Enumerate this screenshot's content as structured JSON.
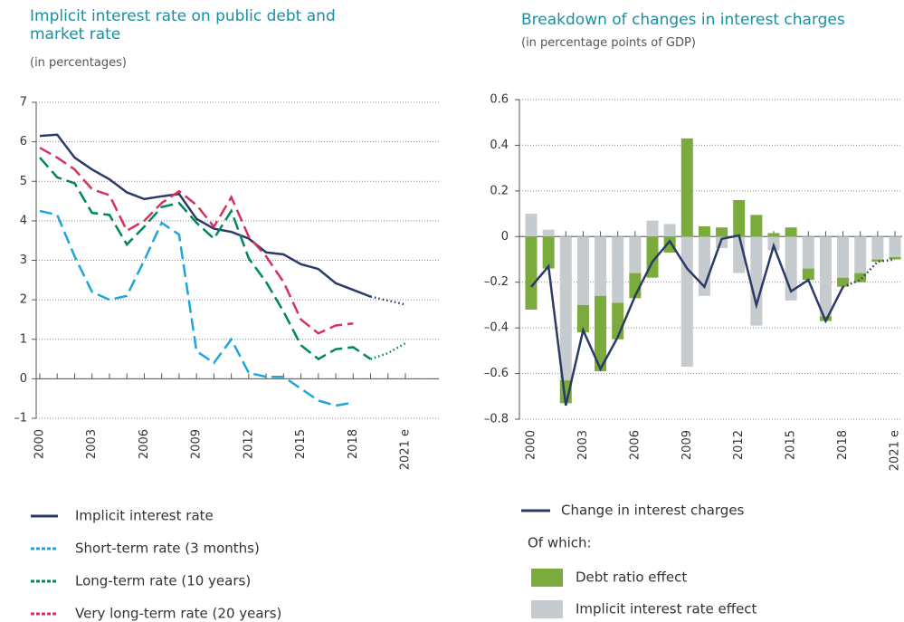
{
  "chart_data": [
    {
      "type": "line",
      "title": "Implicit interest rate on public debt and market rate",
      "subtitle": "(in percentages)",
      "x": [
        2000,
        2001,
        2002,
        2003,
        2004,
        2005,
        2006,
        2007,
        2008,
        2009,
        2010,
        2011,
        2012,
        2013,
        2014,
        2015,
        2016,
        2017,
        2018,
        2019,
        2020,
        2021
      ],
      "xlim": [
        2000,
        2021
      ],
      "xticks": [
        2000,
        2003,
        2006,
        2009,
        2012,
        2015,
        2018,
        {
          "value": 2021,
          "label": "2021 e"
        }
      ],
      "ylim": [
        -1,
        7
      ],
      "yticks": [
        {
          "value": -1,
          "label": "–1"
        },
        0,
        1,
        2,
        3,
        4,
        5,
        6,
        7
      ],
      "grid": true,
      "forecast_from": 2019,
      "series": [
        {
          "name": "Implicit interest rate",
          "color": "#2b3a67",
          "line_style": "solid",
          "values": [
            6.15,
            6.18,
            5.6,
            5.3,
            5.05,
            4.72,
            4.55,
            4.62,
            4.68,
            4.05,
            3.8,
            3.72,
            3.55,
            3.2,
            3.15,
            2.9,
            2.78,
            2.42,
            2.25,
            2.08,
            1.98,
            1.88
          ]
        },
        {
          "name": "Short-term rate (3 months)",
          "color": "#1ea5dc",
          "line_style": "dashed",
          "values": [
            4.25,
            4.15,
            3.1,
            2.2,
            2.0,
            2.1,
            3.0,
            3.95,
            3.65,
            0.7,
            0.4,
            1.0,
            0.15,
            0.05,
            0.05,
            -0.25,
            -0.55,
            -0.68,
            -0.6,
            null,
            null,
            null
          ]
        },
        {
          "name": "Long-term rate (10 years)",
          "color": "#00875a",
          "line_style": "dashed",
          "values": [
            5.6,
            5.1,
            4.95,
            4.2,
            4.15,
            3.4,
            3.85,
            4.35,
            4.45,
            3.95,
            3.55,
            4.25,
            3.05,
            2.45,
            1.7,
            0.85,
            0.5,
            0.75,
            0.8,
            0.5,
            0.65,
            0.9
          ]
        },
        {
          "name": "Very long-term rate (20 years)",
          "color": "#d6335a",
          "line_style": "dashed",
          "values": [
            5.85,
            5.6,
            5.3,
            4.8,
            4.65,
            3.75,
            4.0,
            4.45,
            4.75,
            4.4,
            3.85,
            4.6,
            3.6,
            3.1,
            2.45,
            1.5,
            1.15,
            1.35,
            1.4,
            null,
            null,
            null
          ]
        }
      ]
    },
    {
      "type": "bar_line",
      "title": "Breakdown of changes in interest charges",
      "subtitle": "(in percentage points of GDP)",
      "x": [
        2000,
        2001,
        2002,
        2003,
        2004,
        2005,
        2006,
        2007,
        2008,
        2009,
        2010,
        2011,
        2012,
        2013,
        2014,
        2015,
        2016,
        2017,
        2018,
        2019,
        2020,
        2021
      ],
      "xlim": [
        2000,
        2021
      ],
      "xticks": [
        2000,
        2003,
        2006,
        2009,
        2012,
        2015,
        2018,
        {
          "value": 2021,
          "label": "2021 e"
        }
      ],
      "ylim": [
        -0.8,
        0.6
      ],
      "yticks": [
        {
          "value": -0.8,
          "label": "–0.8"
        },
        {
          "value": -0.6,
          "label": "–0.6"
        },
        {
          "value": -0.4,
          "label": "–0.4"
        },
        {
          "value": -0.2,
          "label": "–0.2"
        },
        0,
        0.2,
        0.4,
        0.6
      ],
      "grid": true,
      "forecast_from": 2018,
      "legend_note": "Of which:",
      "series": [
        {
          "name": "Change in interest charges",
          "type": "line",
          "color": "#2b3a67",
          "values": [
            -0.22,
            -0.13,
            -0.74,
            -0.41,
            -0.58,
            -0.44,
            -0.26,
            -0.11,
            -0.02,
            -0.14,
            -0.22,
            -0.01,
            0.005,
            -0.3,
            -0.04,
            -0.24,
            -0.19,
            -0.37,
            -0.22,
            -0.19,
            -0.11,
            -0.1
          ]
        },
        {
          "name": "Debt ratio effect",
          "type": "bar",
          "color": "#7aab3c",
          "values": [
            -0.32,
            -0.14,
            -0.1,
            -0.12,
            -0.33,
            -0.16,
            -0.11,
            -0.18,
            -0.07,
            0.43,
            0.045,
            0.04,
            0.16,
            0.095,
            0.015,
            0.04,
            -0.05,
            -0.02,
            -0.04,
            -0.04,
            -0.01,
            -0.01
          ]
        },
        {
          "name": "Implicit interest rate effect",
          "type": "bar",
          "color": "#c5cbce",
          "values": [
            0.1,
            0.03,
            -0.63,
            -0.3,
            -0.26,
            -0.29,
            -0.16,
            0.07,
            0.055,
            -0.57,
            -0.26,
            -0.05,
            -0.16,
            -0.39,
            -0.06,
            -0.28,
            -0.14,
            -0.35,
            -0.18,
            -0.16,
            -0.1,
            -0.09
          ]
        }
      ]
    }
  ]
}
